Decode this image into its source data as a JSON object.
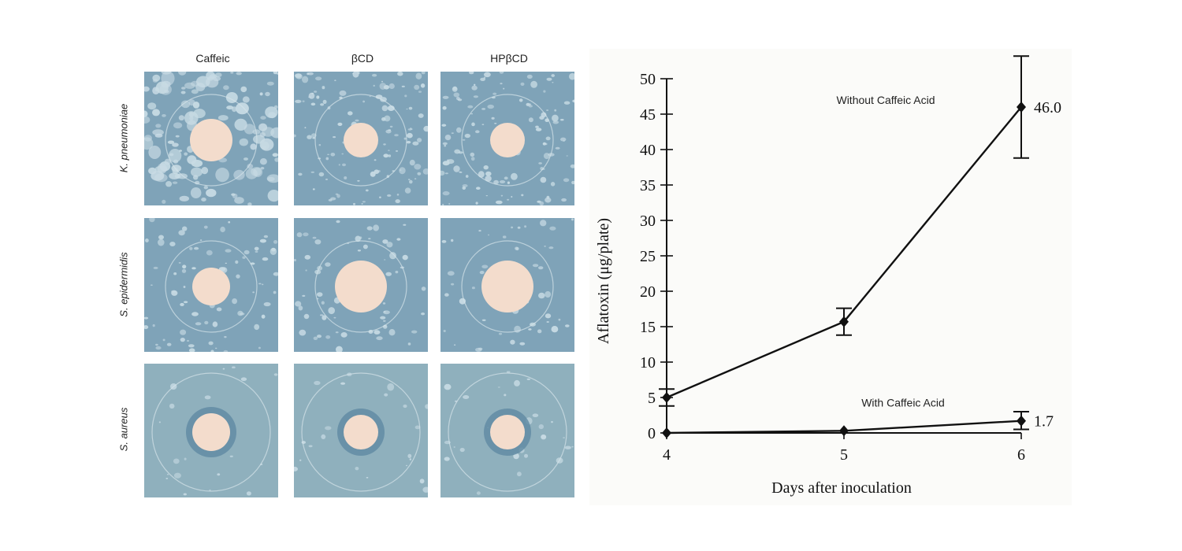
{
  "plates": {
    "columns": [
      "Caffeic",
      "βCD",
      "HPβCD"
    ],
    "rows": [
      "K. pneumoniae",
      "S. epidermidis",
      "S. aureus"
    ],
    "colors": {
      "agar": "#7fa3b8",
      "colony": "#c8dbe4",
      "disk": "#f3dccc",
      "halo": "#5f8aa3"
    }
  },
  "chart_data": {
    "type": "line",
    "xlabel": "Days after inoculation",
    "ylabel": "Aflatoxin (μg/plate)",
    "xlim": [
      4,
      6
    ],
    "ylim": [
      0,
      50
    ],
    "xticks": [
      4,
      5,
      6
    ],
    "yticks": [
      0,
      5,
      10,
      15,
      20,
      25,
      30,
      35,
      40,
      45,
      50
    ],
    "grid": false,
    "series": [
      {
        "name": "Without Caffeic Acid",
        "x": [
          4,
          5,
          6
        ],
        "y": [
          5.0,
          15.7,
          46.0
        ],
        "err_low": [
          3.8,
          13.8,
          38.8
        ],
        "err_high": [
          6.2,
          17.6,
          53.2
        ],
        "end_label": "46.0"
      },
      {
        "name": "With Caffeic Acid",
        "x": [
          4,
          5,
          6
        ],
        "y": [
          0.0,
          0.3,
          1.7
        ],
        "err_low": [
          0.0,
          0.3,
          0.5
        ],
        "err_high": [
          0.0,
          0.3,
          3.0
        ],
        "end_label": "1.7"
      }
    ]
  }
}
